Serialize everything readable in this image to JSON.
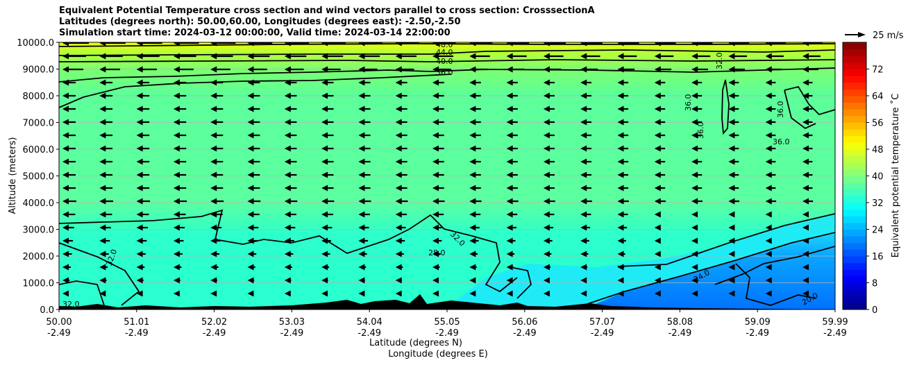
{
  "chart_data": {
    "type": "heatmap",
    "title_lines": [
      "Equivalent Potential Temperature cross section and wind vectors parallel to cross section: CrosssectionA",
      "Latitudes (degrees north): 50.00,60.00, Longitudes (degrees east): -2.50,-2.50",
      "Simulation start time: 2024-03-12 00:00:00, Valid time: 2024-03-14 22:00:00"
    ],
    "ylabel": "Altitude (meters)",
    "xlabel_1": "Latitude (degrees N)",
    "xlabel_2": "Longitude (degrees E)",
    "xlim": [
      50.0,
      59.99
    ],
    "ylim": [
      0,
      10000
    ],
    "y_ticks": [
      "0.0",
      "1000.0",
      "2000.0",
      "3000.0",
      "4000.0",
      "5000.0",
      "6000.0",
      "7000.0",
      "8000.0",
      "9000.0",
      "10000.0"
    ],
    "x_ticks_lat": [
      "50.00",
      "51.01",
      "52.02",
      "53.03",
      "54.04",
      "55.05",
      "56.06",
      "57.07",
      "58.08",
      "59.09",
      "59.99"
    ],
    "x_ticks_lon": [
      "-2.49",
      "-2.49",
      "-2.49",
      "-2.49",
      "-2.49",
      "-2.49",
      "-2.49",
      "-2.49",
      "-2.49",
      "-2.49",
      "-2.49"
    ],
    "colorbar_label": "Equivalent potential temperature ˚C",
    "colorbar_range": [
      0,
      80
    ],
    "colorbar_ticks": [
      "0",
      "8",
      "16",
      "24",
      "32",
      "40",
      "48",
      "56",
      "64",
      "72"
    ],
    "quiver_key": "25 m/s",
    "contour_labels": [
      "48.0",
      "44.0",
      "40.0",
      "36.0",
      "36.0",
      "36.0",
      "36.0",
      "36.0",
      "32.0",
      "32.0",
      "32.0",
      "32.0",
      "28.0",
      "24.0",
      "20.0"
    ],
    "colors": {
      "low": "#0078ff",
      "mid": "#2cffcc",
      "high": "#66ff80",
      "top": "#f0ff00"
    }
  }
}
